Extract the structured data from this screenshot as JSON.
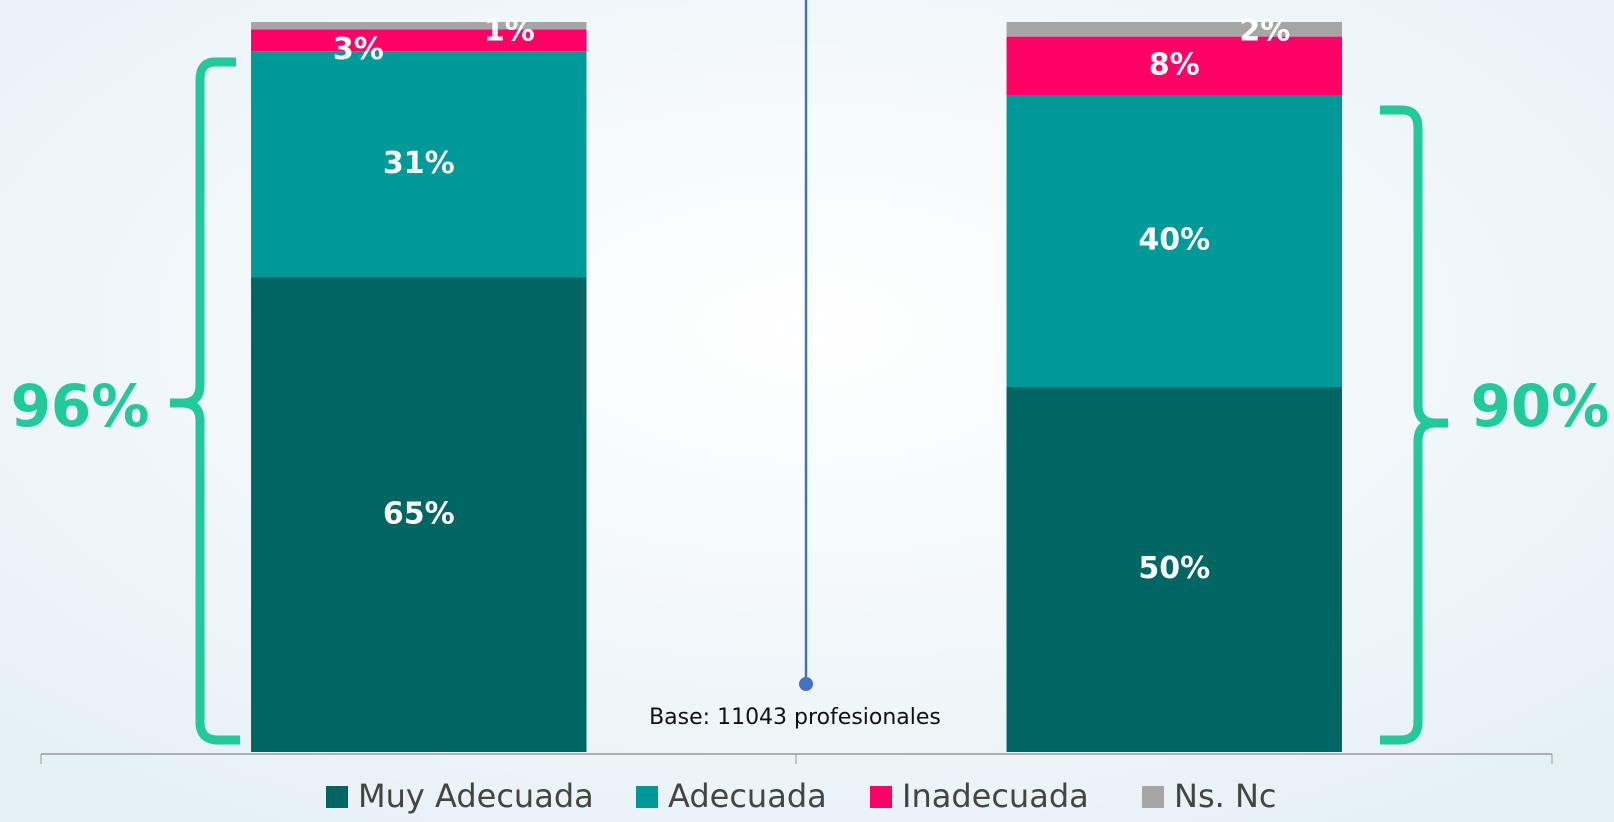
{
  "chart_data": {
    "type": "stacked_bar",
    "categories": [
      null,
      null
    ],
    "series": [
      {
        "name": "Muy Adecuada",
        "color": "#006663",
        "values": [
          65,
          50
        ],
        "value_labels": [
          "65%",
          "50%"
        ]
      },
      {
        "name": "Adecuada",
        "color": "#009999",
        "values": [
          31,
          40
        ],
        "value_labels": [
          "31%",
          "40%"
        ]
      },
      {
        "name": "Inadecuada",
        "color": "#ff0066",
        "values": [
          3,
          8
        ],
        "value_labels": [
          "3%",
          "8%"
        ]
      },
      {
        "name": "Ns. Nc",
        "color": "#a6a6a6",
        "values": [
          1,
          2
        ],
        "value_labels": [
          "1%",
          "2%"
        ]
      }
    ],
    "ylim": [
      0,
      100
    ],
    "legend": "bottom",
    "annotations": {
      "left_total": "96%",
      "right_total": "90%",
      "base": "Base: 11043 profesionales"
    }
  }
}
